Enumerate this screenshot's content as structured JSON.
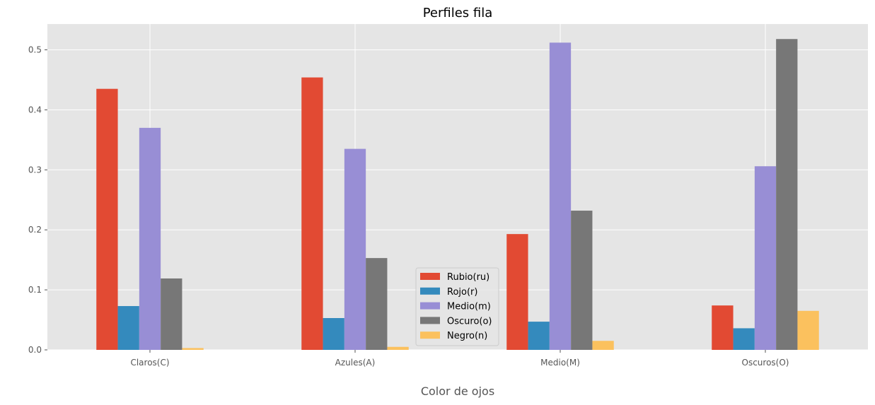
{
  "chart_data": {
    "type": "bar",
    "title": "Perfiles fila",
    "xlabel": "Color de ojos",
    "ylabel": "",
    "categories": [
      "Claros(C)",
      "Azules(A)",
      "Medio(M)",
      "Oscuros(O)"
    ],
    "ylim": [
      0,
      0.543
    ],
    "yticks": [
      0.0,
      0.1,
      0.2,
      0.3,
      0.4,
      0.5
    ],
    "ytick_labels": [
      "0.0",
      "0.1",
      "0.2",
      "0.3",
      "0.4",
      "0.5"
    ],
    "grid": true,
    "legend_position": "lower-center",
    "series": [
      {
        "name": "Rubio(ru)",
        "color": "#E24A33",
        "values": [
          0.435,
          0.454,
          0.193,
          0.074
        ]
      },
      {
        "name": "Rojo(r)",
        "color": "#348ABD",
        "values": [
          0.073,
          0.053,
          0.047,
          0.036
        ]
      },
      {
        "name": "Medio(m)",
        "color": "#988ED5",
        "values": [
          0.37,
          0.335,
          0.512,
          0.306
        ]
      },
      {
        "name": "Oscuro(o)",
        "color": "#777777",
        "values": [
          0.119,
          0.153,
          0.232,
          0.518
        ]
      },
      {
        "name": "Negro(n)",
        "color": "#FBC15E",
        "values": [
          0.003,
          0.005,
          0.015,
          0.065
        ]
      }
    ]
  },
  "style": {
    "plot_background": "#E5E5E5",
    "grid_color": "#FFFFFF"
  }
}
